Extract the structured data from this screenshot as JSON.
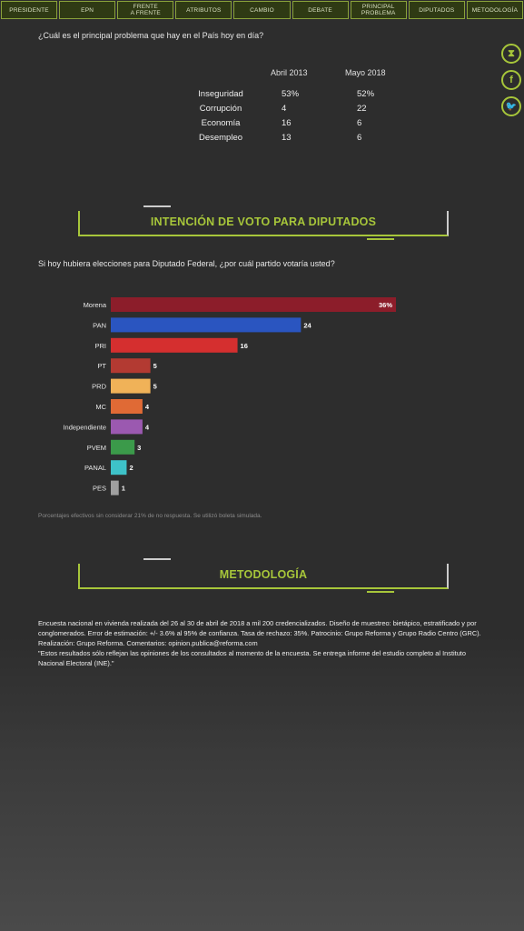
{
  "nav": [
    "PRESIDENTE",
    "EPN",
    "FRENTE A FRENTE",
    "ATRIBUTOS",
    "CAMBIO",
    "DEBATE",
    "PRINCIPAL PROBLEMA",
    "DIPUTADOS",
    "METODOLOGÍA"
  ],
  "nav_split": [
    [
      "PRESIDENTE"
    ],
    [
      "EPN"
    ],
    [
      "FRENTE",
      "A FRENTE"
    ],
    [
      "ATRIBUTOS"
    ],
    [
      "CAMBIO"
    ],
    [
      "DEBATE"
    ],
    [
      "PRINCIPAL",
      "PROBLEMA"
    ],
    [
      "DIPUTADOS"
    ],
    [
      "METODOLOGÍA"
    ]
  ],
  "social": [
    {
      "icon": "share-icon",
      "glyph": "⧗"
    },
    {
      "icon": "facebook-icon",
      "glyph": "f"
    },
    {
      "icon": "twitter-icon",
      "glyph": "🐦"
    }
  ],
  "problem": {
    "question": "¿Cuál es el principal problema que hay en el País hoy en día?",
    "columns": [
      "Abril 2013",
      "Mayo 2018"
    ],
    "rows": [
      {
        "label": "Inseguridad",
        "v2013": "53%",
        "v2018": "52%"
      },
      {
        "label": "Corrupción",
        "v2013": "4",
        "v2018": "22"
      },
      {
        "label": "Economía",
        "v2013": "16",
        "v2018": "6"
      },
      {
        "label": "Desempleo",
        "v2013": "13",
        "v2018": "6"
      }
    ]
  },
  "vote_section": {
    "title": "INTENCIÓN DE VOTO PARA DIPUTADOS",
    "question": "Si hoy hubiera elecciones para Diputado Federal, ¿por cuál partido votaría usted?",
    "footnote": "Porcentajes efectivos sin considerar 21% de no respuesta. Se utilizó boleta simulada."
  },
  "chart_data": {
    "type": "bar",
    "orientation": "horizontal",
    "categories": [
      "Morena",
      "PAN",
      "PRI",
      "PT",
      "PRD",
      "MC",
      "Independiente",
      "PVEM",
      "PANAL",
      "PES"
    ],
    "values": [
      36,
      24,
      16,
      5,
      5,
      4,
      4,
      3,
      2,
      1
    ],
    "value_labels": [
      "36%",
      "24",
      "16",
      "5",
      "5",
      "4",
      "4",
      "3",
      "2",
      "1"
    ],
    "colors": [
      "#8c1d2a",
      "#2a55c0",
      "#d52f2f",
      "#b33a32",
      "#f0b258",
      "#e06a35",
      "#9b59b0",
      "#3b9a4a",
      "#3ec2c8",
      "#a0a0a0"
    ],
    "xlim": [
      0,
      36
    ]
  },
  "method_section": {
    "title": "METODOLOGÍA",
    "text1": " Encuesta nacional en vivienda realizada del 26 al 30 de abril de 2018 a mil 200 credencializados. Diseño de muestreo: bietápico, estratificado y por conglomerados. Error de estimación: +/- 3.6% al 95% de confianza. Tasa de rechazo: 35%. Patrocinio: Grupo Reforma y Grupo Radio Centro (GRC). Realización: Grupo Reforma. Comentarios: opinion.publica@reforma.com",
    "text2": "\"Estos resultados sólo reflejan las opiniones de los consultados al momento de la encuesta. Se entrega informe del estudio completo al Instituto Nacional Electoral (INE).\""
  },
  "colors": {
    "accent": "#a7c63a",
    "background": "#2d2d2d"
  }
}
